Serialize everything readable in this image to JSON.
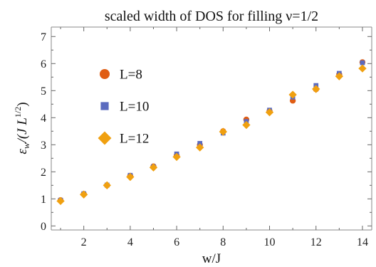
{
  "chart_data": {
    "type": "scatter",
    "title": "scaled width of DOS for filling ν=1/2",
    "xlabel": "w/J",
    "ylabel": "εw/(J L^1/2)",
    "ylabel_parts": {
      "eps": "ε",
      "eps_sub": "w",
      "mid": "/(J L",
      "sup": "1/2",
      "close": ")"
    },
    "xlim": [
      0.6,
      14.4
    ],
    "ylim": [
      -0.15,
      7.35
    ],
    "x_ticks": [
      "2",
      "4",
      "6",
      "8",
      "10",
      "12",
      "14"
    ],
    "y_ticks": [
      "0",
      "1",
      "2",
      "3",
      "4",
      "5",
      "6",
      "7"
    ],
    "x": [
      1,
      2,
      3,
      4,
      5,
      6,
      7,
      8,
      9,
      10,
      11,
      12,
      13,
      14
    ],
    "legend_position": "upper-left-inside",
    "grid": false,
    "series": [
      {
        "name": "L=8",
        "marker": "circle",
        "color": "#e05d14",
        "values": [
          0.95,
          1.18,
          1.5,
          1.85,
          2.2,
          2.6,
          3.0,
          3.5,
          3.93,
          4.25,
          4.63,
          5.05,
          5.6,
          6.05
        ]
      },
      {
        "name": "L=10",
        "marker": "square",
        "color": "#5b6bbf",
        "values": [
          0.95,
          1.19,
          1.51,
          1.87,
          2.19,
          2.66,
          3.05,
          3.43,
          3.86,
          4.28,
          4.76,
          5.19,
          5.64,
          6.03
        ]
      },
      {
        "name": "L=12",
        "marker": "diamond",
        "color": "#f0a010",
        "values": [
          0.92,
          1.16,
          1.5,
          1.81,
          2.16,
          2.55,
          2.9,
          3.48,
          3.73,
          4.2,
          4.85,
          5.06,
          5.53,
          5.82
        ]
      }
    ]
  }
}
